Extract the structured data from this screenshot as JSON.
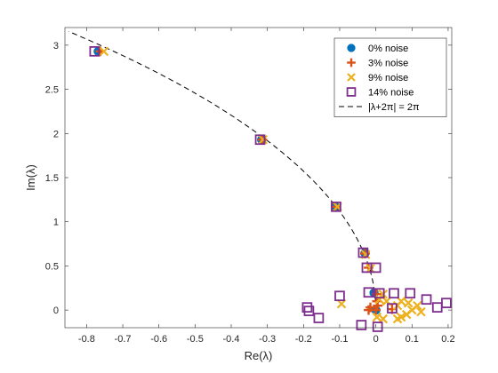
{
  "chart_data": {
    "type": "scatter",
    "xlabel": "Re(λ)",
    "ylabel": "Im(λ)",
    "xlim": [
      -0.86,
      0.21
    ],
    "ylim": [
      -0.2,
      3.2
    ],
    "xticks": [
      -0.8,
      -0.7,
      -0.6,
      -0.5,
      -0.4,
      -0.3,
      -0.2,
      -0.1,
      0,
      0.1,
      0.2
    ],
    "xtick_labels": [
      "-0.8",
      "-0.7",
      "-0.6",
      "-0.5",
      "-0.4",
      "-0.3",
      "-0.2",
      "-0.1",
      "0",
      "0.1",
      "0.2"
    ],
    "yticks": [
      0,
      0.5,
      1,
      1.5,
      2,
      2.5,
      3
    ],
    "ytick_labels": [
      "0",
      "0.5",
      "1",
      "1.5",
      "2",
      "2.5",
      "3"
    ],
    "grid": false,
    "legend_position": "top-right",
    "series": [
      {
        "name": "0% noise",
        "marker": "circle",
        "color": "#0072BD",
        "points": [
          [
            -0.768,
            2.93
          ],
          [
            -0.316,
            1.93
          ],
          [
            -0.112,
            1.17
          ],
          [
            -0.03,
            0.645
          ],
          [
            -0.005,
            0.195
          ],
          [
            0,
            0
          ]
        ]
      },
      {
        "name": "3% noise",
        "marker": "plus",
        "color": "#D95319",
        "points": [
          [
            -0.762,
            2.93
          ],
          [
            -0.314,
            1.93
          ],
          [
            -0.111,
            1.17
          ],
          [
            -0.03,
            0.64
          ],
          [
            -0.02,
            0.48
          ],
          [
            0.002,
            0.18
          ],
          [
            0.003,
            0.1
          ],
          [
            -0.015,
            0.03
          ],
          [
            -0.02,
            0.0
          ],
          [
            0.005,
            0.05
          ],
          [
            0.045,
            0.01
          ],
          [
            0.0,
            0.0
          ]
        ]
      },
      {
        "name": "9% noise",
        "marker": "x",
        "color": "#EDB120",
        "points": [
          [
            -0.752,
            2.93
          ],
          [
            -0.312,
            1.93
          ],
          [
            -0.106,
            1.17
          ],
          [
            -0.028,
            0.63
          ],
          [
            -0.015,
            0.47
          ],
          [
            -0.095,
            0.07
          ],
          [
            0.01,
            0.12
          ],
          [
            0.02,
            0.18
          ],
          [
            0.03,
            0.1
          ],
          [
            0.06,
            0.05
          ],
          [
            0.07,
            0.1
          ],
          [
            0.09,
            0.08
          ],
          [
            0.115,
            0.05
          ],
          [
            0.1,
            0.0
          ],
          [
            0.07,
            -0.08
          ],
          [
            0.06,
            -0.1
          ],
          [
            0.085,
            -0.05
          ],
          [
            0.125,
            -0.02
          ],
          [
            0.02,
            -0.1
          ],
          [
            0.003,
            -0.08
          ]
        ]
      },
      {
        "name": "14% noise",
        "marker": "square",
        "color": "#7E2F8E",
        "points": [
          [
            -0.778,
            2.93
          ],
          [
            -0.32,
            1.93
          ],
          [
            -0.11,
            1.17
          ],
          [
            -0.035,
            0.65
          ],
          [
            -0.025,
            0.48
          ],
          [
            0,
            0.48
          ],
          [
            -0.02,
            0.2
          ],
          [
            0.01,
            0.19
          ],
          [
            -0.1,
            0.16
          ],
          [
            -0.19,
            0.03
          ],
          [
            -0.185,
            -0.01
          ],
          [
            -0.158,
            -0.09
          ],
          [
            -0.04,
            -0.17
          ],
          [
            0.005,
            -0.19
          ],
          [
            0.05,
            0.19
          ],
          [
            0.095,
            0.19
          ],
          [
            0.14,
            0.12
          ],
          [
            0.17,
            0.03
          ],
          [
            0.195,
            0.08
          ],
          [
            0.045,
            0.02
          ]
        ]
      }
    ],
    "curve": {
      "name": "|λ+2π| = 2π",
      "style": "dashed",
      "color": "#000000"
    }
  }
}
